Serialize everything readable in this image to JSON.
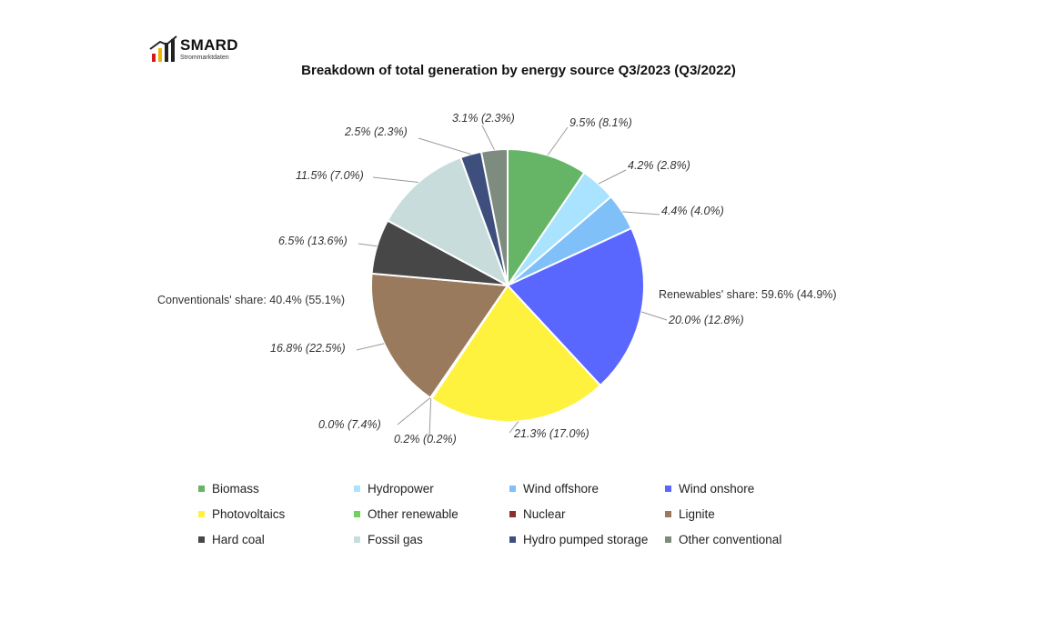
{
  "logo": {
    "title": "SMARD",
    "subtitle": "Strommarktdaten",
    "bar_colors": [
      "#d7191c",
      "#f0b400",
      "#222222"
    ]
  },
  "chart_data": {
    "type": "pie",
    "title": "Breakdown of total generation by energy source Q3/2023 (Q3/2022)",
    "series": [
      {
        "name": "Biomass",
        "value": 9.5,
        "previous": 8.1,
        "label": "9.5% (8.1%)",
        "color": "#66b566"
      },
      {
        "name": "Hydropower",
        "value": 4.2,
        "previous": 2.8,
        "label": "4.2% (2.8%)",
        "color": "#a9e3ff"
      },
      {
        "name": "Wind offshore",
        "value": 4.4,
        "previous": 4.0,
        "label": "4.4% (4.0%)",
        "color": "#7fc0f8"
      },
      {
        "name": "Wind onshore",
        "value": 20.0,
        "previous": 12.8,
        "label": "20.0% (12.8%)",
        "color": "#5a67ff"
      },
      {
        "name": "Photovoltaics",
        "value": 21.3,
        "previous": 17.0,
        "label": "21.3% (17.0%)",
        "color": "#fff23f"
      },
      {
        "name": "Other renewable",
        "value": 0.2,
        "previous": 0.2,
        "label": "0.2% (0.2%)",
        "color": "#6fd35a"
      },
      {
        "name": "Nuclear",
        "value": 0.0,
        "previous": 7.4,
        "label": "0.0% (7.4%)",
        "color": "#8b2e2e"
      },
      {
        "name": "Lignite",
        "value": 16.8,
        "previous": 22.5,
        "label": "16.8% (22.5%)",
        "color": "#9a7a5c"
      },
      {
        "name": "Hard coal",
        "value": 6.5,
        "previous": 13.6,
        "label": "6.5% (13.6%)",
        "color": "#474747"
      },
      {
        "name": "Fossil gas",
        "value": 11.5,
        "previous": 7.0,
        "label": "11.5% (7.0%)",
        "color": "#c8dcdc"
      },
      {
        "name": "Hydro pumped storage",
        "value": 2.5,
        "previous": 2.3,
        "label": "2.5% (2.3%)",
        "color": "#3e4f7e"
      },
      {
        "name": "Other conventional",
        "value": 3.1,
        "previous": 2.3,
        "label": "3.1% (2.3%)",
        "color": "#7e8c80"
      }
    ],
    "annotations": {
      "renewables_share": "Renewables' share: 59.6% (44.9%)",
      "conventionals_share": "Conventionals' share: 40.4% (55.1%)"
    },
    "legend_position": "bottom"
  }
}
